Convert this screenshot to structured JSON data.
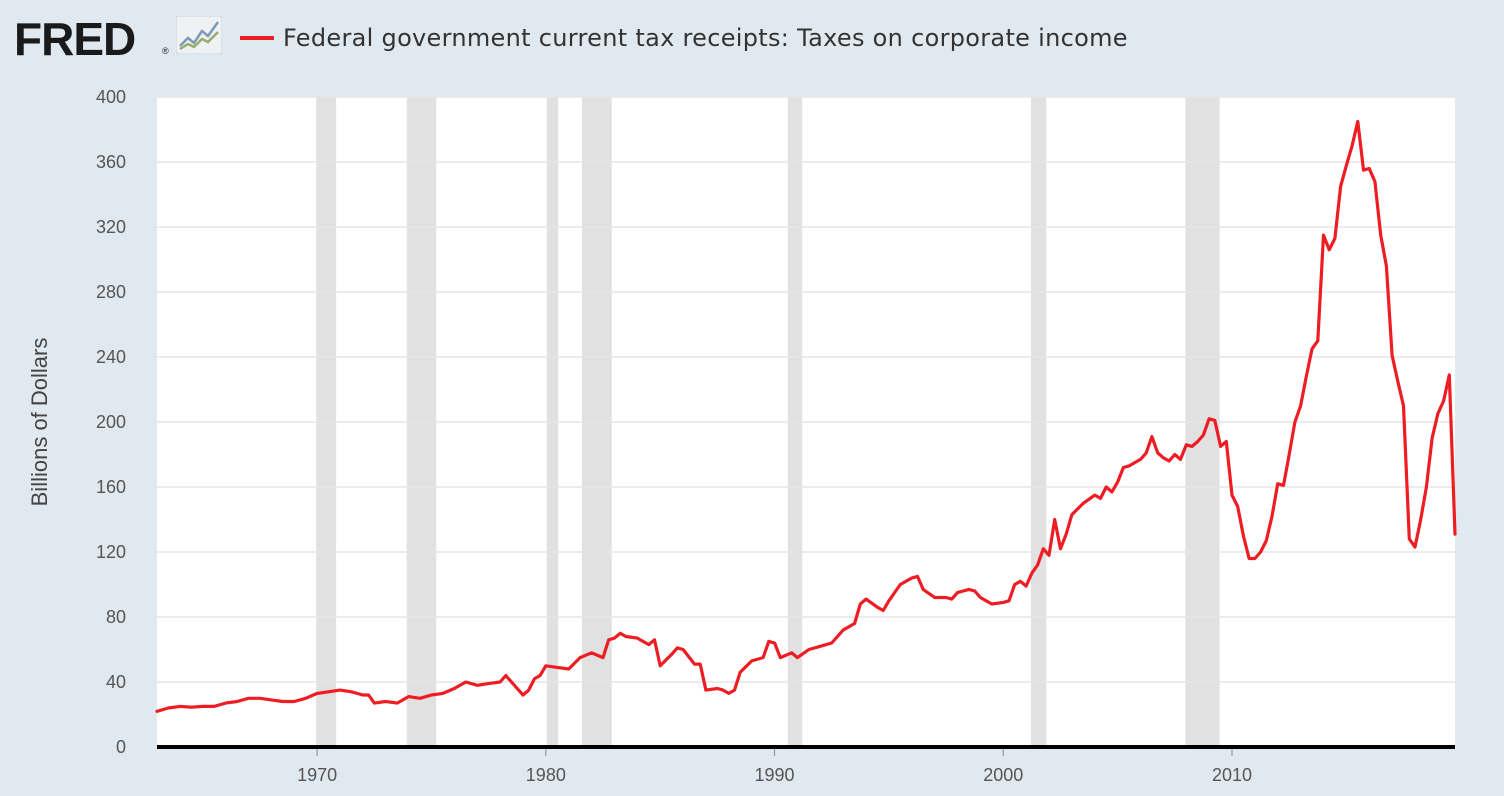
{
  "header": {
    "logo_text": "FRED",
    "logo_reg": "®",
    "title": "Federal government current tax receipts: Taxes on corporate income"
  },
  "colors": {
    "background": "#e1e9f0",
    "plot_background": "#ffffff",
    "line": "#ee1d23",
    "recession": "#e1e1e1",
    "grid": "#e6e6e6",
    "axis": "#000000"
  },
  "chart_data": {
    "type": "line",
    "title": "Federal government current tax receipts: Taxes on corporate income",
    "ylabel": "Billions of Dollars",
    "xlabel": "",
    "xlim": [
      1963.0,
      2019.75
    ],
    "ylim": [
      0,
      400
    ],
    "x_ticks": [
      1970,
      1980,
      1990,
      2000,
      2010
    ],
    "y_ticks": [
      0,
      40,
      80,
      120,
      160,
      200,
      240,
      280,
      320,
      360,
      400
    ],
    "grid": true,
    "recessions": [
      [
        1969.96,
        1970.83
      ],
      [
        1973.92,
        1975.21
      ],
      [
        1980.04,
        1980.54
      ],
      [
        1981.58,
        1982.88
      ],
      [
        1990.58,
        1991.21
      ],
      [
        2001.21,
        2001.88
      ],
      [
        2007.96,
        2009.46
      ]
    ],
    "series": [
      {
        "name": "Federal government current tax receipts: Taxes on corporate income",
        "points": [
          [
            1963.0,
            22
          ],
          [
            1963.5,
            24
          ],
          [
            1964.0,
            25
          ],
          [
            1964.5,
            24.5
          ],
          [
            1965.0,
            25
          ],
          [
            1965.5,
            25
          ],
          [
            1966.0,
            27
          ],
          [
            1966.5,
            28
          ],
          [
            1967.0,
            30
          ],
          [
            1967.5,
            30
          ],
          [
            1968.0,
            29
          ],
          [
            1968.5,
            28
          ],
          [
            1969.0,
            28
          ],
          [
            1969.5,
            30
          ],
          [
            1970.0,
            33
          ],
          [
            1970.5,
            34
          ],
          [
            1971.0,
            35
          ],
          [
            1971.5,
            34
          ],
          [
            1972.0,
            32
          ],
          [
            1972.25,
            32
          ],
          [
            1972.5,
            27
          ],
          [
            1973.0,
            28
          ],
          [
            1973.5,
            27
          ],
          [
            1973.75,
            29
          ],
          [
            1974.0,
            31
          ],
          [
            1974.5,
            30
          ],
          [
            1975.0,
            32
          ],
          [
            1975.5,
            33
          ],
          [
            1976.0,
            36
          ],
          [
            1976.5,
            40
          ],
          [
            1977.0,
            38
          ],
          [
            1977.5,
            39
          ],
          [
            1978.0,
            40
          ],
          [
            1978.25,
            44
          ],
          [
            1978.75,
            36
          ],
          [
            1979.0,
            32
          ],
          [
            1979.25,
            35
          ],
          [
            1979.5,
            42
          ],
          [
            1979.75,
            44
          ],
          [
            1980.0,
            50
          ],
          [
            1980.5,
            49
          ],
          [
            1981.0,
            48
          ],
          [
            1981.5,
            55
          ],
          [
            1982.0,
            58
          ],
          [
            1982.5,
            55
          ],
          [
            1982.75,
            66
          ],
          [
            1983.0,
            67
          ],
          [
            1983.25,
            70
          ],
          [
            1983.5,
            68
          ],
          [
            1984.0,
            67
          ],
          [
            1984.5,
            63
          ],
          [
            1984.75,
            66
          ],
          [
            1985.0,
            50
          ],
          [
            1985.5,
            57
          ],
          [
            1985.75,
            61
          ],
          [
            1986.0,
            60
          ],
          [
            1986.5,
            51
          ],
          [
            1986.75,
            51
          ],
          [
            1987.0,
            35
          ],
          [
            1987.5,
            36
          ],
          [
            1987.75,
            35
          ],
          [
            1988.0,
            33
          ],
          [
            1988.25,
            35
          ],
          [
            1988.5,
            46
          ],
          [
            1989.0,
            53
          ],
          [
            1989.5,
            55
          ],
          [
            1989.75,
            65
          ],
          [
            1990.0,
            64
          ],
          [
            1990.25,
            55
          ],
          [
            1990.75,
            58
          ],
          [
            1991.0,
            55
          ],
          [
            1991.5,
            60
          ],
          [
            1992.0,
            62
          ],
          [
            1992.5,
            64
          ],
          [
            1993.0,
            72
          ],
          [
            1993.5,
            76
          ],
          [
            1993.75,
            88
          ],
          [
            1994.0,
            91
          ],
          [
            1994.5,
            86
          ],
          [
            1994.75,
            84
          ],
          [
            1995.0,
            90
          ],
          [
            1995.5,
            100
          ],
          [
            1996.0,
            104
          ],
          [
            1996.25,
            105
          ],
          [
            1996.5,
            97
          ],
          [
            1997.0,
            92
          ],
          [
            1997.5,
            92
          ],
          [
            1997.75,
            91
          ],
          [
            1998.0,
            95
          ],
          [
            1998.25,
            96
          ],
          [
            1998.5,
            97
          ],
          [
            1998.75,
            96
          ],
          [
            1999.0,
            92
          ],
          [
            1999.5,
            88
          ],
          [
            2000.0,
            89
          ],
          [
            2000.25,
            90
          ],
          [
            2000.5,
            100
          ],
          [
            2000.75,
            102
          ],
          [
            2001.0,
            99
          ],
          [
            2001.25,
            107
          ],
          [
            2001.5,
            112
          ],
          [
            2001.75,
            122
          ],
          [
            2002.0,
            118
          ],
          [
            2002.25,
            140
          ],
          [
            2002.5,
            122
          ],
          [
            2002.75,
            131
          ],
          [
            2003.0,
            143
          ],
          [
            2003.5,
            150
          ],
          [
            2004.0,
            155
          ],
          [
            2004.25,
            153
          ],
          [
            2004.5,
            160
          ],
          [
            2004.75,
            157
          ],
          [
            2005.0,
            163
          ],
          [
            2005.25,
            172
          ],
          [
            2005.5,
            173
          ],
          [
            2005.75,
            175
          ],
          [
            2006.0,
            177
          ],
          [
            2006.25,
            181
          ],
          [
            2006.5,
            191
          ],
          [
            2006.75,
            181
          ],
          [
            2007.0,
            178
          ],
          [
            2007.25,
            176
          ],
          [
            2007.5,
            180
          ],
          [
            2007.75,
            177
          ],
          [
            2008.0,
            186
          ],
          [
            2008.25,
            185
          ],
          [
            2008.5,
            188
          ],
          [
            2008.75,
            192
          ],
          [
            2009.0,
            202
          ],
          [
            2009.25,
            201
          ],
          [
            2009.5,
            185
          ],
          [
            2009.75,
            188
          ],
          [
            2010.0,
            155
          ],
          [
            2010.25,
            148
          ],
          [
            2010.5,
            130
          ],
          [
            2010.75,
            116
          ],
          [
            2011.0,
            116
          ],
          [
            2011.25,
            120
          ],
          [
            2011.5,
            127
          ],
          [
            2011.75,
            142
          ],
          [
            2012.0,
            162
          ],
          [
            2012.25,
            161
          ],
          [
            2012.5,
            180
          ],
          [
            2012.75,
            200
          ],
          [
            2013.0,
            210
          ],
          [
            2013.25,
            228
          ],
          [
            2013.5,
            245
          ],
          [
            2013.75,
            250
          ],
          [
            2014.0,
            315
          ],
          [
            2014.25,
            306
          ],
          [
            2014.5,
            313
          ],
          [
            2014.75,
            345
          ],
          [
            2015.0,
            358
          ],
          [
            2015.25,
            370
          ],
          [
            2015.5,
            385
          ],
          [
            2015.75,
            355
          ],
          [
            2016.0,
            356
          ],
          [
            2016.25,
            348
          ],
          [
            2016.5,
            315
          ],
          [
            2016.75,
            296
          ],
          [
            2017.0,
            241
          ],
          [
            2017.25,
            225
          ],
          [
            2017.5,
            210
          ],
          [
            2017.75,
            128
          ],
          [
            2018.0,
            123
          ],
          [
            2018.25,
            140
          ],
          [
            2018.5,
            160
          ],
          [
            2018.75,
            190
          ],
          [
            2019.0,
            205
          ],
          [
            2019.25,
            213
          ],
          [
            2019.5,
            229
          ],
          [
            2019.75,
            131
          ]
        ]
      }
    ]
  }
}
